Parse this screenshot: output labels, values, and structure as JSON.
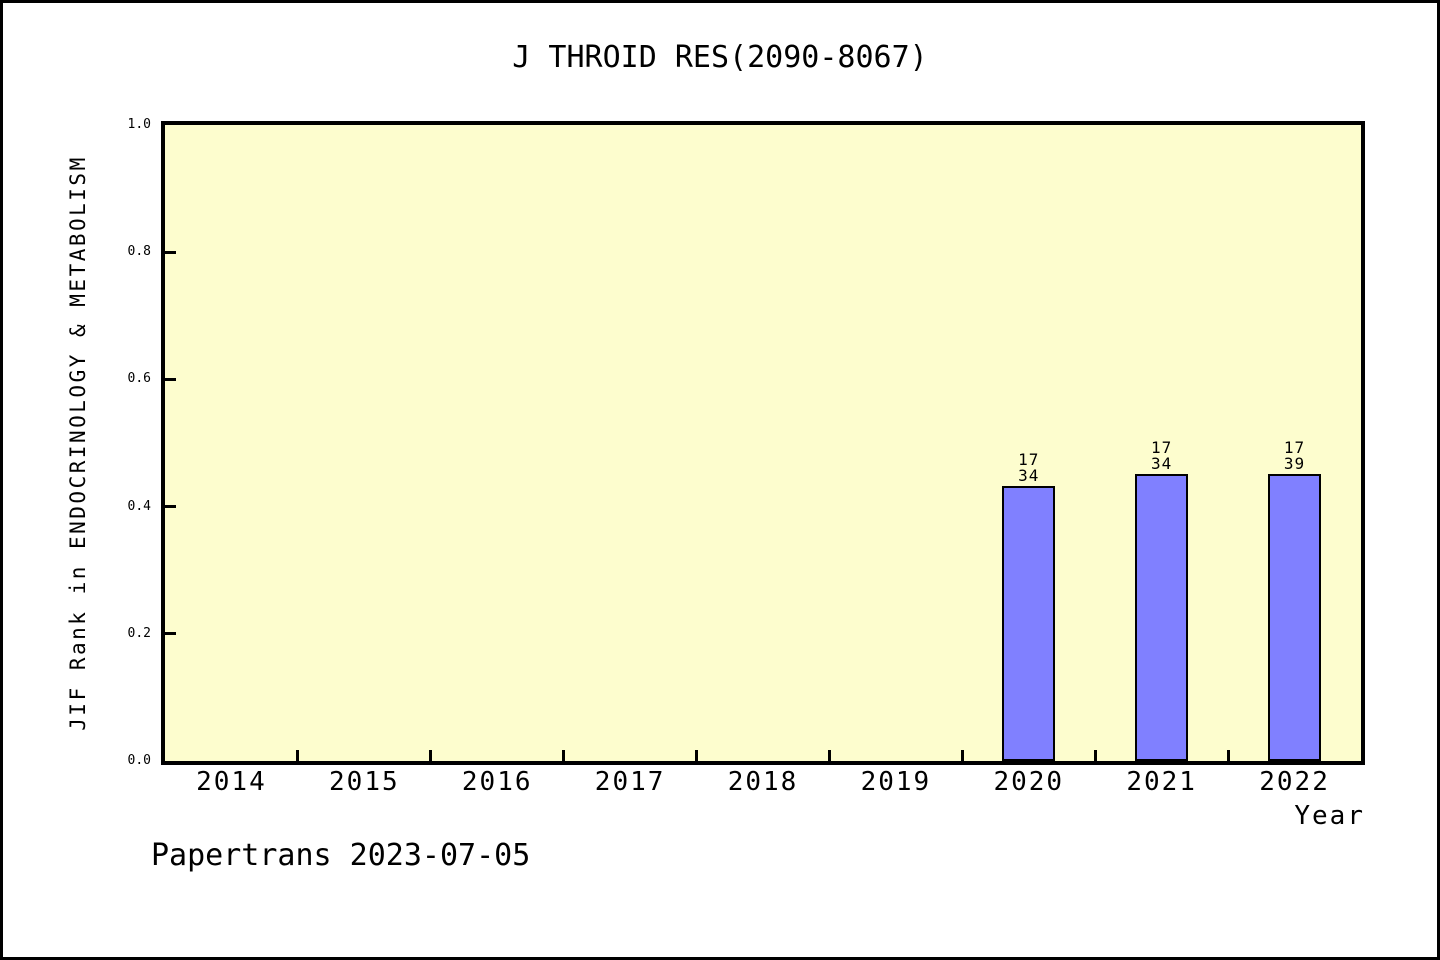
{
  "window": {
    "background": "#ffffff",
    "border_color": "#000000"
  },
  "chart_data": {
    "type": "bar",
    "title": "J THROID RES(2090-8067)",
    "xlabel": "Year",
    "ylabel": "JIF Rank in ENDOCRINOLOGY & METABOLISM",
    "footer": "Papertrans 2023-07-05",
    "categories": [
      "2014",
      "2015",
      "2016",
      "2017",
      "2018",
      "2019",
      "2020",
      "2021",
      "2022"
    ],
    "series": [
      {
        "name": "JIF Rank",
        "values": [
          null,
          null,
          null,
          null,
          null,
          null,
          0.432,
          0.452,
          0.452
        ]
      }
    ],
    "bar_annotations": [
      null,
      null,
      null,
      null,
      null,
      null,
      {
        "rank": "17",
        "total": "34"
      },
      {
        "rank": "17",
        "total": "34"
      },
      {
        "rank": "17",
        "total": "39"
      }
    ],
    "ylim": [
      0.0,
      1.0
    ],
    "yticks": [
      "0.0",
      "0.2",
      "0.4",
      "0.6",
      "0.8",
      "1.0"
    ],
    "grid": false,
    "legend_position": "none",
    "colors": {
      "bar_fill": "#8080ff",
      "bar_border": "#000000",
      "plot_background": "#fdfdce",
      "text": "#000000"
    }
  }
}
